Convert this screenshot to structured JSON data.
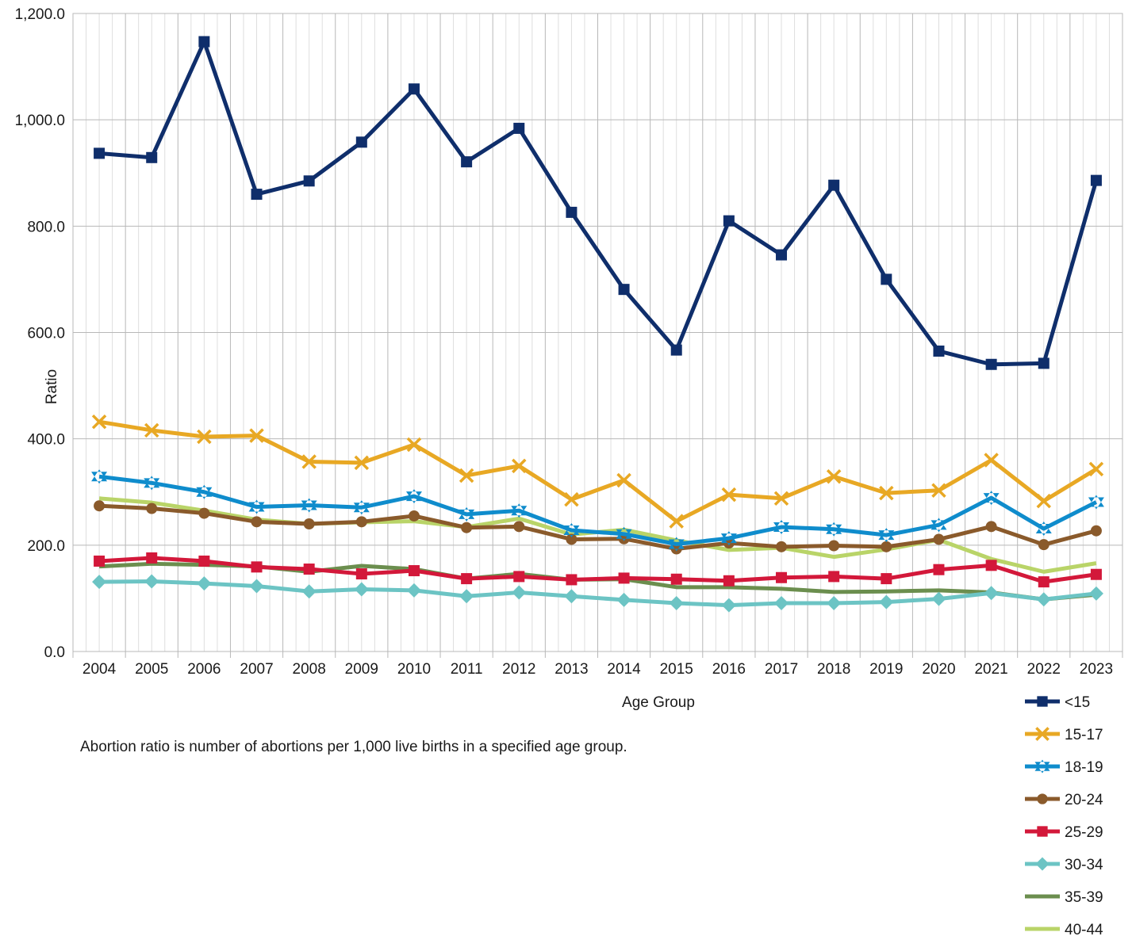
{
  "chart_data": {
    "type": "line",
    "title": "",
    "xlabel": "Age Group",
    "ylabel": "Ratio",
    "ylim": [
      0,
      1200
    ],
    "yticks": [
      "0.0",
      "200.0",
      "400.0",
      "600.0",
      "800.0",
      "1,000.0",
      "1,200.0"
    ],
    "ytick_values": [
      0,
      200,
      400,
      600,
      800,
      1000,
      1200
    ],
    "grid": "vertical and horizontal",
    "legend_position": "right-bottom",
    "categories": [
      "2004",
      "2005",
      "2006",
      "2007",
      "2008",
      "2009",
      "2010",
      "2011",
      "2012",
      "2013",
      "2014",
      "2015",
      "2016",
      "2017",
      "2018",
      "2019",
      "2020",
      "2021",
      "2022",
      "2023"
    ],
    "series": [
      {
        "name": "<15",
        "color": "#0f2e6b",
        "marker": "square",
        "values": [
          937,
          929,
          1147,
          860,
          885,
          958,
          1058,
          921,
          984,
          826,
          681,
          567,
          810,
          746,
          877,
          700,
          565,
          540,
          542,
          886
        ]
      },
      {
        "name": "15-17",
        "color": "#e8a824",
        "marker": "x",
        "values": [
          432,
          416,
          404,
          406,
          357,
          355,
          389,
          331,
          349,
          286,
          322,
          245,
          295,
          288,
          329,
          298,
          303,
          360,
          283,
          343
        ]
      },
      {
        "name": "18-19",
        "color": "#0f8ccc",
        "marker": "star",
        "values": [
          329,
          317,
          300,
          272,
          275,
          271,
          292,
          258,
          265,
          228,
          221,
          202,
          213,
          234,
          230,
          219,
          238,
          289,
          231,
          281
        ]
      },
      {
        "name": "20-24",
        "color": "#8a5a2b",
        "marker": "circle",
        "values": [
          274,
          269,
          260,
          244,
          240,
          244,
          255,
          233,
          235,
          211,
          212,
          193,
          204,
          197,
          199,
          197,
          211,
          235,
          201,
          227
        ]
      },
      {
        "name": "25-29",
        "color": "#d3183a",
        "marker": "square",
        "values": [
          170,
          176,
          170,
          159,
          155,
          146,
          152,
          137,
          141,
          135,
          138,
          136,
          133,
          139,
          141,
          137,
          154,
          162,
          131,
          145
        ]
      },
      {
        "name": "30-34",
        "color": "#6cc4c4",
        "marker": "diamond",
        "values": [
          131,
          132,
          128,
          123,
          113,
          117,
          115,
          104,
          111,
          104,
          97,
          91,
          87,
          91,
          91,
          93,
          99,
          110,
          98,
          109
        ]
      },
      {
        "name": "35-39",
        "color": "#6b8e4e",
        "marker": "none",
        "values": [
          160,
          165,
          163,
          160,
          150,
          161,
          155,
          137,
          146,
          135,
          136,
          121,
          121,
          118,
          112,
          113,
          115,
          111,
          98,
          107
        ]
      },
      {
        "name": "40-44",
        "color": "#b9d468",
        "marker": "none",
        "values": [
          288,
          280,
          265,
          248,
          240,
          243,
          245,
          234,
          250,
          220,
          229,
          209,
          191,
          195,
          178,
          192,
          210,
          174,
          150,
          166
        ]
      }
    ]
  },
  "footnote": "Abortion ratio is number of abortions per 1,000 live births in a specified age group."
}
